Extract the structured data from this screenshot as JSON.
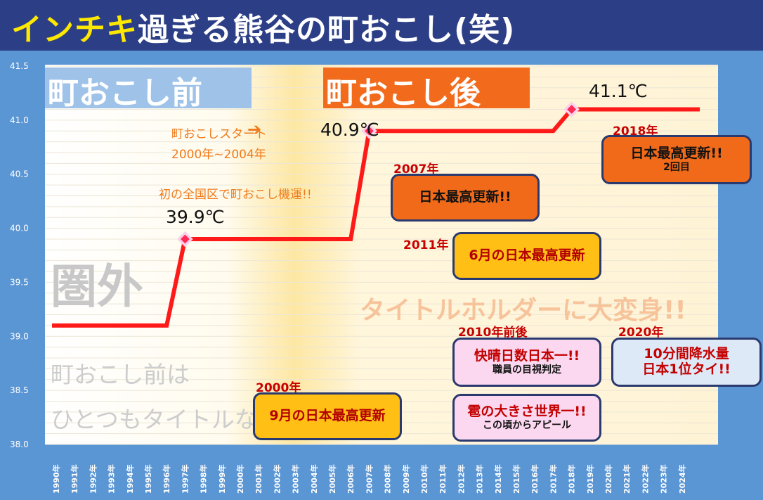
{
  "title": {
    "highlight": "インチキ",
    "rest": "過ぎる熊谷の町おこし(笑)"
  },
  "colors": {
    "line": "#ff1a1a",
    "marker": "#ff2a55",
    "before_band": "#9fc2e8",
    "after_band": "#f26b1d",
    "frame": "#5b96d4",
    "title_bg": "#2c3f86"
  },
  "chart_data": {
    "type": "line",
    "title": "インチキ過ぎる熊谷の町おこし(笑)",
    "x_ticks": [
      "1990年",
      "1991年",
      "1992年",
      "1993年",
      "1994年",
      "1995年",
      "1996年",
      "1997年",
      "1998年",
      "1999年",
      "2000年",
      "2001年",
      "2002年",
      "2003年",
      "2004年",
      "2005年",
      "2006年",
      "2007年",
      "2008年",
      "2009年",
      "2010年",
      "2011年",
      "2012年",
      "2013年",
      "2014年",
      "2015年",
      "2016年",
      "2017年",
      "2018年",
      "2019年",
      "2020年",
      "2021年",
      "2022年",
      "2023年",
      "2024年"
    ],
    "y_ticks": [
      "41.5",
      "41.0",
      "40.5",
      "40.0",
      "39.5",
      "39.0",
      "38.5",
      "38.0"
    ],
    "ylim": [
      38.0,
      41.5
    ],
    "xlim": [
      1990,
      2024
    ],
    "grid": true,
    "series": [
      {
        "points": [
          [
            1990,
            39.1
          ],
          [
            1996,
            39.1
          ],
          [
            1997,
            39.9
          ],
          [
            2006,
            39.9
          ],
          [
            2007,
            40.9
          ],
          [
            2017,
            40.9
          ],
          [
            2018,
            41.1
          ],
          [
            2024,
            41.1
          ]
        ]
      }
    ],
    "markers": [
      {
        "x": 1997,
        "y": 39.9,
        "label": "39.9℃"
      },
      {
        "x": 2007,
        "y": 40.9,
        "label": "40.9℃"
      },
      {
        "x": 2018,
        "y": 41.1,
        "label": "41.1℃"
      }
    ]
  },
  "labels": {
    "before": "町おこし前",
    "after": "町おこし後",
    "start_line1": "町おこしスタート",
    "start_line2": "2000年~2004年",
    "opportunity": "初の全国区で町おこし機運!!",
    "out_of_range": "圏外",
    "no_title_line1": "町おこし前は",
    "no_title_line2": "ひとつもタイトルなし・・・",
    "title_holder": "タイトルホルダーに大変身!!"
  },
  "events": [
    {
      "year": "2000年",
      "main": "9月の日本最高更新",
      "sub": ""
    },
    {
      "year": "2007年",
      "main": "日本最高更新!!",
      "sub": ""
    },
    {
      "year": "2011年",
      "main": "6月の日本最高更新",
      "sub": ""
    },
    {
      "year": "2010年前後",
      "main": "快晴日数日本一!!",
      "sub": "職員の目視判定"
    },
    {
      "year": "",
      "main": "雹の大きさ世界一!!",
      "sub": "この頃からアピール"
    },
    {
      "year": "2018年",
      "main": "日本最高更新!!",
      "sub": "2回目"
    },
    {
      "year": "2020年",
      "main": "10分間降水量",
      "sub": "日本1位タイ!!"
    }
  ]
}
